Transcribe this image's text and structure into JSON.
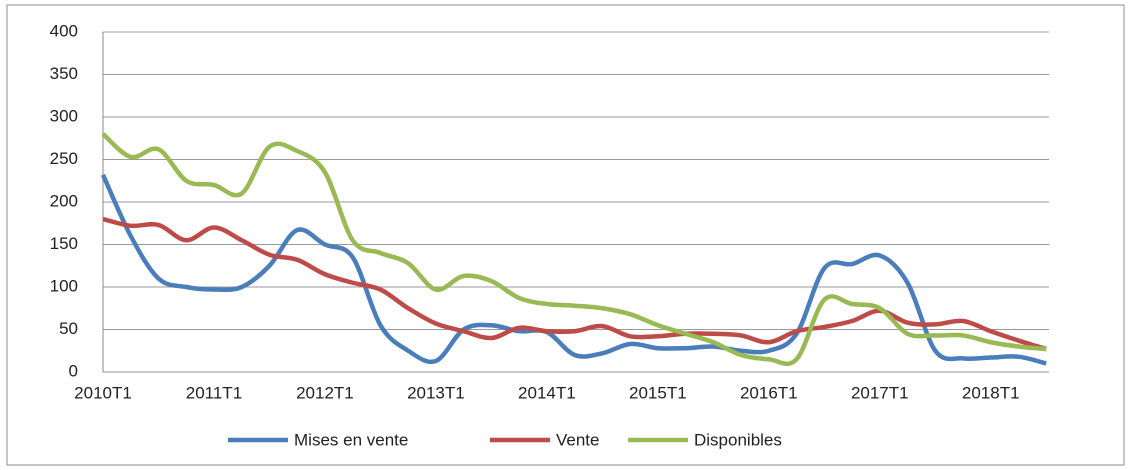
{
  "chart_data": {
    "type": "line",
    "categories": [
      "2010T1",
      null,
      null,
      null,
      "2011T1",
      null,
      null,
      null,
      "2012T1",
      null,
      null,
      null,
      "2013T1",
      null,
      null,
      null,
      "2014T1",
      null,
      null,
      null,
      "2015T1",
      null,
      null,
      null,
      "2016T1",
      null,
      null,
      null,
      "2017T1",
      null,
      null,
      null,
      "2018T1",
      null,
      null
    ],
    "series": [
      {
        "name": "Mises en vente",
        "color": "#4a7ebb",
        "values": [
          232,
          160,
          110,
          100,
          97,
          100,
          125,
          167,
          150,
          135,
          55,
          25,
          13,
          50,
          55,
          48,
          47,
          20,
          22,
          33,
          28,
          28,
          30,
          25,
          25,
          45,
          122,
          127,
          137,
          105,
          25,
          16,
          17,
          18,
          10
        ]
      },
      {
        "name": "Vente",
        "color": "#be4b48",
        "values": [
          180,
          172,
          173,
          155,
          170,
          155,
          138,
          132,
          115,
          105,
          97,
          75,
          57,
          48,
          40,
          52,
          48,
          48,
          54,
          42,
          42,
          45,
          45,
          43,
          35,
          48,
          53,
          60,
          72,
          58,
          56,
          60,
          48,
          37,
          27
        ]
      },
      {
        "name": "Disponibles",
        "color": "#98b954",
        "values": [
          280,
          253,
          262,
          225,
          220,
          210,
          265,
          260,
          235,
          155,
          140,
          128,
          97,
          113,
          107,
          87,
          80,
          78,
          75,
          68,
          55,
          45,
          35,
          20,
          15,
          15,
          85,
          80,
          75,
          45,
          43,
          43,
          35,
          30,
          27
        ]
      }
    ],
    "ylim": [
      0,
      400
    ],
    "yticks": [
      0,
      50,
      100,
      150,
      200,
      250,
      300,
      350,
      400
    ],
    "grid": true,
    "legend": "bottom"
  }
}
